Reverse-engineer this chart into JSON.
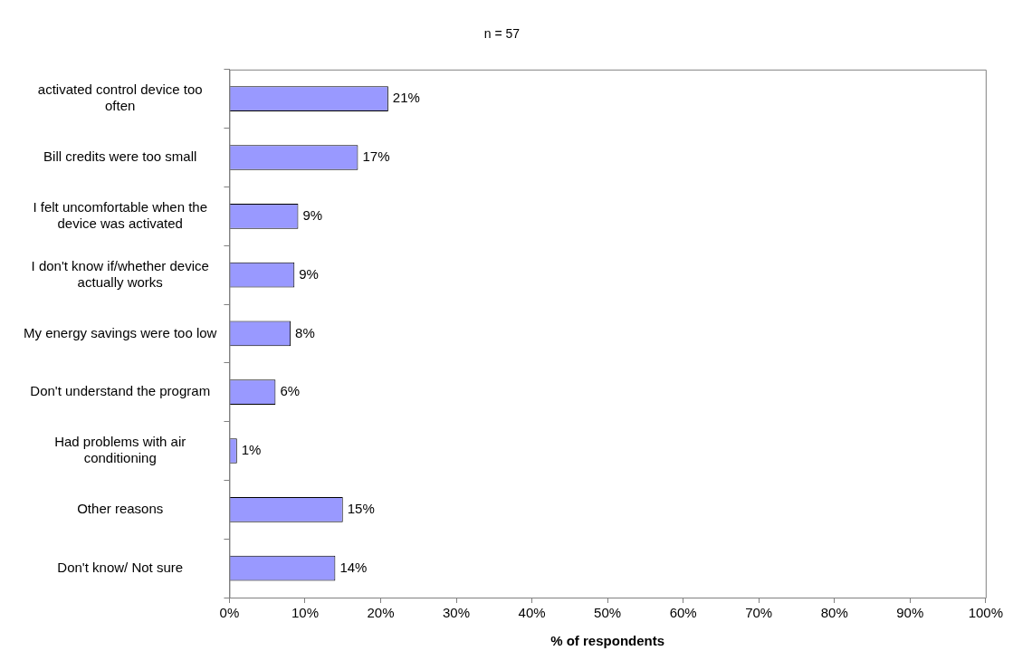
{
  "chart_data": {
    "type": "bar",
    "orientation": "horizontal",
    "title": "n = 57",
    "xlabel": "% of respondents",
    "categories": [
      "activated control device too often",
      "Bill credits were too small",
      "I felt uncomfortable when the device was activated",
      "I don't know if/whether device actually works",
      "My energy savings were too low",
      "Don't understand the program",
      "Had problems with air conditioning",
      "Other reasons",
      "Don't know/ Not sure"
    ],
    "values": [
      21,
      17,
      9.1,
      8.6,
      8.1,
      6.1,
      1.0,
      15,
      14
    ],
    "value_labels": [
      "21%",
      "17%",
      "9%",
      "9%",
      "8%",
      "6%",
      "1%",
      "15%",
      "14%"
    ],
    "color": "#9999ff",
    "xlim": [
      0,
      100
    ],
    "xticks": [
      {
        "value": 0,
        "label": "0%"
      },
      {
        "value": 10,
        "label": "10%"
      },
      {
        "value": 20,
        "label": "20%"
      },
      {
        "value": 30,
        "label": "30%"
      },
      {
        "value": 40,
        "label": "40%"
      },
      {
        "value": 50,
        "label": "50%"
      },
      {
        "value": 60,
        "label": "60%"
      },
      {
        "value": 70,
        "label": "70%"
      },
      {
        "value": 80,
        "label": "80%"
      },
      {
        "value": 90,
        "label": "90%"
      },
      {
        "value": 100,
        "label": "100%"
      }
    ],
    "grid": false,
    "legend": false
  }
}
